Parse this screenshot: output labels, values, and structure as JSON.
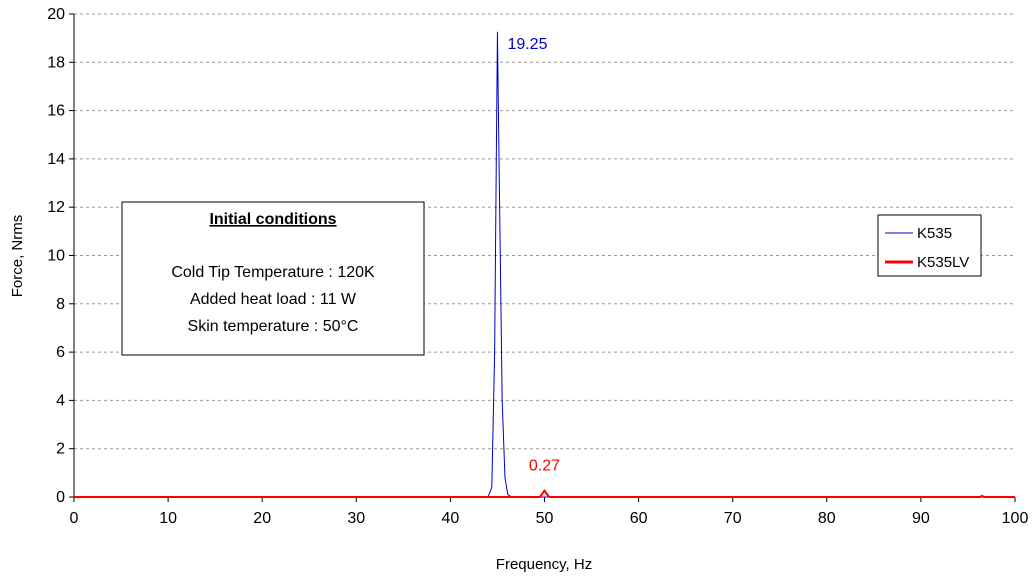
{
  "chart_data": {
    "type": "line",
    "xlabel": "Frequency, Hz",
    "ylabel": "Force, Nrms",
    "xlim": [
      0,
      100
    ],
    "ylim": [
      0,
      20
    ],
    "x_ticks": [
      0,
      10,
      20,
      30,
      40,
      50,
      60,
      70,
      80,
      90,
      100
    ],
    "y_ticks": [
      0,
      2,
      4,
      6,
      8,
      10,
      12,
      14,
      16,
      18,
      20
    ],
    "grid": "horizontal-dashed",
    "legend_position": "right",
    "series": [
      {
        "name": "K535",
        "color": "#0000cc",
        "points": [
          [
            0,
            0
          ],
          [
            44,
            0
          ],
          [
            44.4,
            0.4
          ],
          [
            44.7,
            6
          ],
          [
            44.9,
            15
          ],
          [
            45,
            19.25
          ],
          [
            45.1,
            16
          ],
          [
            45.3,
            10
          ],
          [
            45.5,
            4
          ],
          [
            45.8,
            0.8
          ],
          [
            46.1,
            0.1
          ],
          [
            46.5,
            0
          ],
          [
            100,
            0
          ]
        ]
      },
      {
        "name": "K535LV",
        "color": "#ff0000",
        "points": [
          [
            0,
            0
          ],
          [
            49.5,
            0
          ],
          [
            49.8,
            0.15
          ],
          [
            50,
            0.27
          ],
          [
            50.2,
            0.15
          ],
          [
            50.5,
            0
          ],
          [
            96.3,
            0
          ],
          [
            96.5,
            0.05
          ],
          [
            96.7,
            0
          ],
          [
            100,
            0
          ]
        ]
      }
    ],
    "annotations": [
      {
        "text": "19.25",
        "x": 45,
        "y": 19.25,
        "color": "#0000cc"
      },
      {
        "text": "0.27",
        "x": 50,
        "y": 0.27,
        "color": "#ff0000"
      }
    ],
    "textbox": {
      "title": "Initial conditions",
      "lines": [
        "Cold Tip Temperature : 120K",
        "Added heat load : 11 W",
        "Skin temperature : 50°C"
      ]
    }
  }
}
